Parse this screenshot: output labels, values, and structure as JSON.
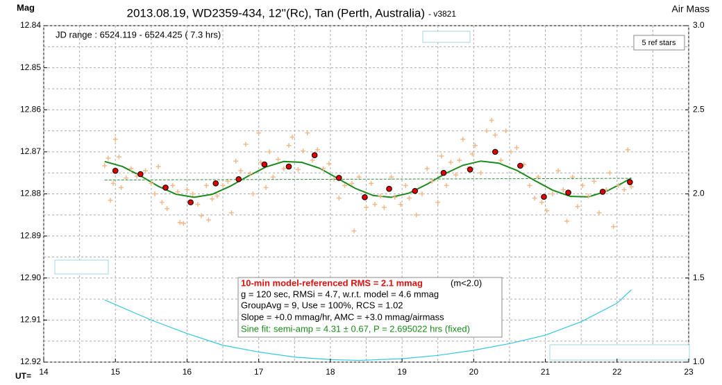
{
  "chart_data": {
    "type": "scatter",
    "title": "2013.08.19, WD2359-434, 12''(Rc), Tan (Perth, Australia)",
    "subtitle": "- v3821",
    "ylabel": "Mag",
    "y2label": "Air Mass",
    "xlabel": "UT=",
    "annotations": {
      "jd": "JD range : 6524.119 - 6524.425 ( 7.3 hrs)",
      "refs": "5 ref stars",
      "info": [
        "10-min model-referenced RMS = 2.1 mmag",
        "(m<2.0)",
        "g = 120 sec, RMSi = 4.7, w.r.t. model = 4.6 mmag",
        "GroupAvg = 9, Use = 100%, RCS = 1.02",
        "Slope = +0.0 mmag/hr, AMC = +3.0 mmag/airmass",
        "Sine fit: semi-amp = 4.31 ± 0.67, P = 2.695022 hrs (fixed)"
      ]
    },
    "xlim": [
      14,
      23
    ],
    "xticks": [
      14,
      15,
      16,
      17,
      18,
      19,
      20,
      21,
      22,
      23
    ],
    "ylim": [
      12.92,
      12.84
    ],
    "yticks": [
      12.84,
      12.85,
      12.86,
      12.87,
      12.88,
      12.89,
      {
        "value": 12.9,
        "label": "12.90"
      },
      12.91,
      12.92
    ],
    "y2lim": [
      1,
      3
    ],
    "y2ticks": [
      {
        "value": 1,
        "label": "1.0"
      },
      1.5,
      {
        "value": 2,
        "label": "2.0"
      },
      2.5,
      {
        "value": 3,
        "label": "3.0"
      }
    ],
    "grid": true,
    "series": [
      {
        "style": "cross",
        "color": "#f2b98a",
        "x": [
          14.85,
          14.9,
          14.93,
          14.97,
          15.0,
          15.05,
          15.08,
          15.15,
          15.22,
          15.3,
          15.42,
          15.5,
          15.55,
          15.6,
          15.65,
          15.72,
          15.8,
          15.87,
          15.9,
          15.95,
          16.0,
          16.08,
          16.15,
          16.2,
          16.27,
          16.3,
          16.35,
          16.42,
          16.5,
          16.57,
          16.62,
          16.68,
          16.75,
          16.82,
          16.88,
          16.92,
          17.0,
          17.03,
          17.1,
          17.15,
          17.2,
          17.27,
          17.35,
          17.42,
          17.47,
          17.55,
          17.62,
          17.68,
          17.75,
          17.82,
          17.9,
          17.98,
          18.05,
          18.12,
          18.2,
          18.3,
          18.33,
          18.4,
          18.5,
          18.57,
          18.62,
          18.7,
          18.75,
          18.85,
          18.9,
          18.98,
          19.05,
          19.1,
          19.2,
          19.28,
          19.35,
          19.42,
          19.5,
          19.55,
          19.62,
          19.68,
          19.75,
          19.8,
          19.85,
          19.92,
          19.98,
          20.02,
          20.1,
          20.18,
          20.25,
          20.3,
          20.38,
          20.45,
          20.52,
          20.6,
          20.7,
          20.78,
          20.85,
          20.9,
          20.95,
          21.02,
          21.1,
          21.18,
          21.25,
          21.3,
          21.38,
          21.45,
          21.52,
          21.6,
          21.68,
          21.75,
          21.85,
          21.9,
          21.95,
          22.02,
          22.1,
          22.15,
          22.2
        ],
        "values": [
          12.8733,
          12.8715,
          12.8815,
          12.8775,
          12.867,
          12.8712,
          12.8785,
          12.8762,
          12.874,
          12.8758,
          12.8745,
          12.8775,
          12.88,
          12.8735,
          12.882,
          12.8835,
          12.878,
          12.8795,
          12.8868,
          12.887,
          12.879,
          12.88,
          12.8825,
          12.8852,
          12.878,
          12.8862,
          12.8812,
          12.8805,
          12.878,
          12.877,
          12.8845,
          12.8722,
          12.8745,
          12.8682,
          12.8752,
          12.88,
          12.8655,
          12.8725,
          12.8785,
          12.87,
          12.876,
          12.8718,
          12.874,
          12.8685,
          12.8665,
          12.8742,
          12.8698,
          12.8655,
          12.872,
          12.8695,
          12.874,
          12.8728,
          12.8765,
          12.881,
          12.878,
          12.8775,
          12.8888,
          12.876,
          12.8832,
          12.8775,
          12.8825,
          12.8805,
          12.8832,
          12.876,
          12.8808,
          12.8825,
          12.878,
          12.881,
          12.885,
          12.88,
          12.874,
          12.877,
          12.882,
          12.871,
          12.878,
          12.8725,
          12.8755,
          12.872,
          12.867,
          12.874,
          12.8705,
          12.8685,
          12.875,
          12.865,
          12.8625,
          12.866,
          12.872,
          12.865,
          12.87,
          12.869,
          12.873,
          12.878,
          12.881,
          12.876,
          12.882,
          12.884,
          12.88,
          12.8745,
          12.879,
          12.8865,
          12.876,
          12.883,
          12.878,
          12.8805,
          12.877,
          12.8845,
          12.879,
          12.875,
          12.8878,
          12.878,
          12.879,
          12.8695,
          12.8783
        ]
      },
      {
        "style": "dashed",
        "color": "#2e8b3a",
        "x": [
          14.85,
          22.2
        ],
        "values": [
          12.8767,
          12.8763
        ]
      },
      {
        "style": "line",
        "color": "#1a8a1a",
        "x": [
          14.85,
          15.1,
          15.35,
          15.6,
          15.85,
          16.1,
          16.35,
          16.6,
          16.85,
          17.1,
          17.35,
          17.6,
          17.85,
          18.1,
          18.35,
          18.6,
          18.85,
          19.1,
          19.35,
          19.6,
          19.85,
          20.1,
          20.35,
          20.6,
          20.85,
          21.1,
          21.35,
          21.6,
          21.85,
          22.1,
          22.2
        ],
        "values": [
          12.8723,
          12.8735,
          12.8757,
          12.8782,
          12.8801,
          12.8808,
          12.8801,
          12.8782,
          12.8758,
          12.8736,
          12.8723,
          12.8725,
          12.8739,
          12.8763,
          12.8787,
          12.8804,
          12.8808,
          12.8798,
          12.8777,
          12.8752,
          12.8732,
          12.8722,
          12.8727,
          12.8744,
          12.8768,
          12.8791,
          12.8806,
          12.8807,
          12.8794,
          12.8772,
          12.8762
        ]
      },
      {
        "style": "dot",
        "color": "#dd0000",
        "x": [
          15.0,
          15.35,
          15.7,
          16.05,
          16.4,
          16.72,
          17.08,
          17.42,
          17.78,
          18.12,
          18.48,
          18.82,
          19.18,
          19.58,
          19.95,
          20.3,
          20.65,
          20.98,
          21.32,
          21.8,
          22.18
        ],
        "values": [
          12.8745,
          12.8753,
          12.8785,
          12.882,
          12.8775,
          12.8765,
          12.873,
          12.8735,
          12.8708,
          12.8762,
          12.8808,
          12.8788,
          12.8793,
          12.875,
          12.8742,
          12.87,
          12.8733,
          12.8807,
          12.8797,
          12.8795,
          12.8772
        ]
      },
      {
        "style": "line",
        "color": "#33c6e0",
        "axis": "y2",
        "x": [
          14.85,
          15.5,
          16,
          16.5,
          17,
          17.5,
          18,
          18.4,
          19,
          19.5,
          20,
          20.5,
          21,
          21.5,
          22,
          22.2
        ],
        "values": [
          1.37,
          1.25,
          1.17,
          1.1,
          1.06,
          1.03,
          1.015,
          1.01,
          1.02,
          1.04,
          1.07,
          1.11,
          1.16,
          1.24,
          1.35,
          1.43
        ]
      }
    ]
  }
}
